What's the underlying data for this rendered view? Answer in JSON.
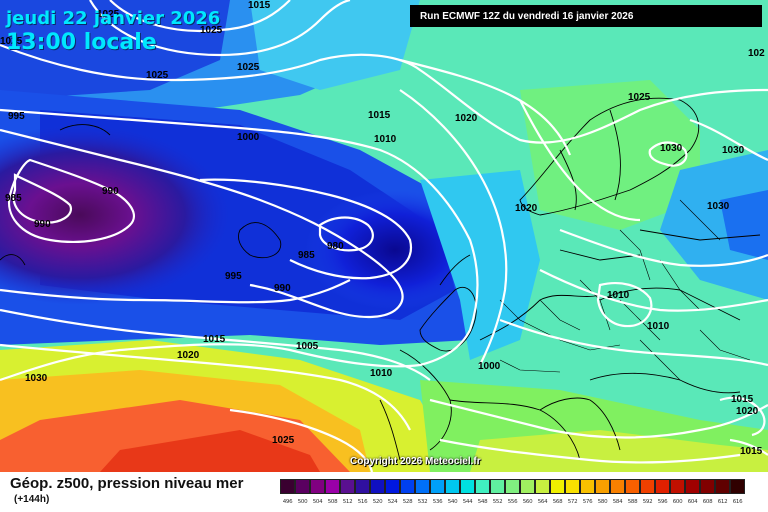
{
  "header": {
    "date_line": "jeudi 22 janvier 2026",
    "time_line": "13:00 locale",
    "run_label": "Run ECMWF 12Z du vendredi 16 janvier 2026"
  },
  "copyright": "Copyright 2026 Meteociel.fr",
  "legend": {
    "title": "Géop. z500, pression niveau mer",
    "subtitle": "(+144h)",
    "scale_values": [
      "496",
      "500",
      "504",
      "508",
      "512",
      "516",
      "520",
      "524",
      "528",
      "532",
      "536",
      "540",
      "544",
      "548",
      "552",
      "556",
      "560",
      "564",
      "568",
      "572",
      "576",
      "580",
      "584",
      "588",
      "592",
      "596",
      "600",
      "604",
      "608",
      "612",
      "616"
    ],
    "scale_colors": [
      "#3a0030",
      "#5a0060",
      "#800080",
      "#9a00a8",
      "#5a1090",
      "#3010a0",
      "#1010c0",
      "#0018e0",
      "#0040f0",
      "#0070f8",
      "#00a0f8",
      "#00c8f0",
      "#00e0e0",
      "#40f0c0",
      "#60f0a0",
      "#80f080",
      "#a0f060",
      "#c8f040",
      "#f0f000",
      "#f8e000",
      "#f8c000",
      "#f8a000",
      "#f88000",
      "#f86000",
      "#f04000",
      "#e02000",
      "#c01000",
      "#a00000",
      "#800000",
      "#600000",
      "#300000"
    ]
  },
  "isobar_labels": [
    {
      "text": "1015"
    },
    {
      "text": "1025"
    },
    {
      "text": "1025"
    },
    {
      "text": "1025"
    },
    {
      "text": "1025"
    },
    {
      "text": "995"
    },
    {
      "text": "1000"
    },
    {
      "text": "1015"
    },
    {
      "text": "1010"
    },
    {
      "text": "1020"
    },
    {
      "text": "1025"
    },
    {
      "text": "1030"
    },
    {
      "text": "1030"
    },
    {
      "text": "1030"
    },
    {
      "text": "990"
    },
    {
      "text": "985"
    },
    {
      "text": "990"
    },
    {
      "text": "1020"
    },
    {
      "text": "980"
    },
    {
      "text": "985"
    },
    {
      "text": "995"
    },
    {
      "text": "990"
    },
    {
      "text": "1010"
    },
    {
      "text": "1010"
    },
    {
      "text": "1015"
    },
    {
      "text": "1005"
    },
    {
      "text": "1020"
    },
    {
      "text": "1000"
    },
    {
      "text": "1010"
    },
    {
      "text": "1030"
    },
    {
      "text": "1025"
    },
    {
      "text": "1015"
    },
    {
      "text": "1020"
    },
    {
      "text": "1015"
    },
    {
      "text": "1025"
    },
    {
      "text": "102"
    }
  ]
}
